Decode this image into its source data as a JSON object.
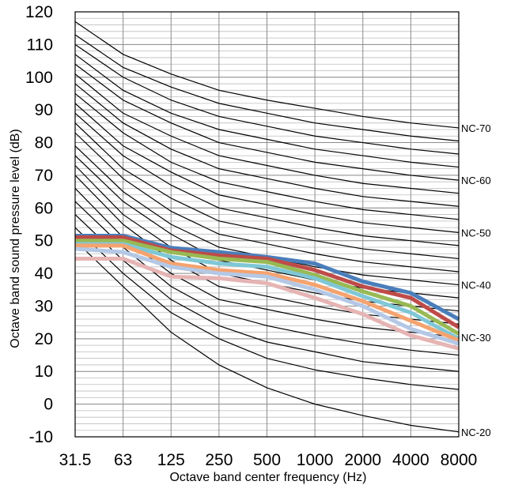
{
  "chart_data": {
    "type": "line",
    "xlabel": "Octave band center frequency (Hz)",
    "ylabel": "Octave band sound pressure level (dB)",
    "x": [
      "31.5",
      "63",
      "125",
      "250",
      "500",
      "1000",
      "2000",
      "4000",
      "8000"
    ],
    "ylim": [
      -10,
      120
    ],
    "yticks": [
      -10,
      0,
      10,
      20,
      30,
      40,
      50,
      60,
      70,
      80,
      90,
      100,
      110,
      120
    ],
    "minor_grid_step": 2,
    "grid": true,
    "nc_labels": [
      "NC-70",
      "NC-60",
      "NC-50",
      "NC-40",
      "NC-30",
      "NC-20"
    ],
    "nc_curves": [
      {
        "values": [
          117.0,
          107.0,
          101.0,
          96.0,
          93.0,
          90.5,
          88.0,
          86.0,
          84.5
        ]
      },
      {
        "values": [
          113.0,
          103.0,
          97.0,
          92.0,
          89.0,
          86.0,
          84.0,
          82.0,
          80.5
        ]
      },
      {
        "values": [
          110.0,
          100.0,
          93.0,
          88.0,
          85.0,
          82.0,
          80.0,
          78.0,
          76.5
        ]
      },
      {
        "values": [
          107.0,
          96.0,
          89.0,
          84.0,
          81.0,
          78.0,
          76.0,
          74.0,
          72.5
        ]
      },
      {
        "values": [
          104.0,
          93.0,
          86.0,
          80.0,
          77.0,
          74.0,
          72.0,
          70.0,
          68.5
        ]
      },
      {
        "values": [
          101.0,
          89.0,
          82.0,
          76.0,
          73.0,
          70.0,
          67.5,
          66.0,
          64.5
        ]
      },
      {
        "values": [
          98.0,
          86.0,
          78.0,
          72.0,
          69.0,
          66.0,
          63.5,
          62.0,
          60.5
        ]
      },
      {
        "values": [
          95.0,
          83.0,
          74.0,
          68.0,
          65.0,
          62.0,
          59.5,
          58.0,
          56.5
        ]
      },
      {
        "values": [
          92.0,
          79.0,
          71.0,
          64.0,
          61.0,
          58.0,
          55.5,
          54.0,
          52.5
        ]
      },
      {
        "values": [
          89.0,
          76.0,
          67.0,
          60.0,
          57.0,
          54.0,
          51.5,
          50.0,
          48.5
        ]
      },
      {
        "values": [
          86.0,
          72.0,
          63.0,
          56.0,
          53.0,
          50.0,
          47.5,
          46.0,
          44.5
        ]
      },
      {
        "values": [
          83.0,
          69.0,
          59.0,
          52.0,
          49.0,
          46.0,
          43.5,
          42.0,
          40.5
        ]
      },
      {
        "values": [
          79.0,
          65.0,
          55.0,
          48.0,
          45.0,
          42.0,
          39.5,
          38.0,
          36.5
        ]
      },
      {
        "values": [
          76.0,
          62.0,
          52.0,
          44.0,
          41.0,
          38.0,
          35.5,
          34.0,
          32.5
        ]
      },
      {
        "values": [
          73.0,
          58.0,
          48.0,
          40.0,
          37.0,
          34.0,
          31.5,
          30.0,
          28.5
        ]
      },
      {
        "values": [
          70.0,
          55.0,
          44.0,
          36.0,
          33.0,
          30.0,
          27.5,
          26.0,
          24.5
        ]
      },
      {
        "values": [
          66.0,
          51.0,
          40.0,
          32.0,
          29.0,
          26.0,
          23.5,
          22.0,
          20.5
        ]
      },
      {
        "values": [
          62.0,
          48.0,
          36.0,
          28.0,
          24.0,
          21.0,
          18.5,
          16.5,
          15.0
        ]
      },
      {
        "values": [
          58.0,
          44.0,
          32.0,
          24.0,
          19.0,
          16.0,
          13.0,
          11.5,
          10.0
        ]
      },
      {
        "values": [
          54.0,
          40.0,
          28.0,
          20.0,
          14.0,
          10.5,
          8.0,
          6.0,
          4.5
        ]
      },
      {
        "values": [
          50.0,
          36.0,
          22.0,
          12.0,
          5.0,
          0.0,
          -3.5,
          -6.5,
          -8.5
        ]
      }
    ],
    "series": [
      {
        "color": "#4a7ebb",
        "values": [
          51.5,
          51.5,
          47.8,
          46.5,
          45.0,
          43.0,
          37.5,
          34.0,
          26.0
        ]
      },
      {
        "color": "#be4b48",
        "values": [
          51.0,
          51.0,
          47.0,
          45.5,
          44.5,
          41.0,
          36.0,
          32.5,
          23.5
        ]
      },
      {
        "color": "#98b954",
        "values": [
          50.0,
          50.0,
          46.5,
          44.5,
          43.5,
          39.5,
          34.5,
          30.0,
          21.5
        ]
      },
      {
        "color": "#7fc7d6",
        "values": [
          49.0,
          49.0,
          45.0,
          43.0,
          42.0,
          38.5,
          33.0,
          28.0,
          20.0
        ]
      },
      {
        "color": "#f5a36f",
        "values": [
          48.5,
          48.5,
          43.0,
          41.0,
          40.0,
          36.5,
          31.5,
          25.5,
          19.5
        ]
      },
      {
        "color": "#b4c8e6",
        "values": [
          47.5,
          46.5,
          42.0,
          40.0,
          39.0,
          35.0,
          30.0,
          23.0,
          18.5
        ]
      },
      {
        "color": "#e6b4b4",
        "values": [
          44.5,
          44.5,
          39.0,
          38.5,
          37.0,
          32.5,
          27.5,
          21.0,
          17.0
        ]
      }
    ]
  }
}
